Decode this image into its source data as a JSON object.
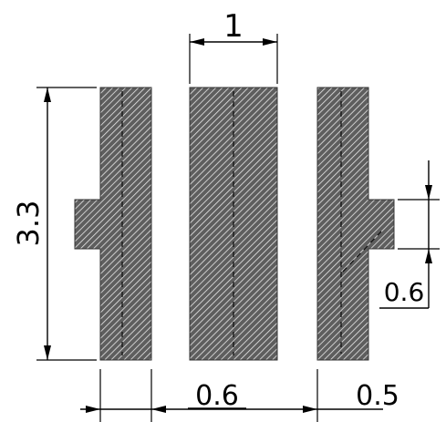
{
  "drawing": {
    "hatch_color": "#666666",
    "line_color": "#000000",
    "dimensions": {
      "top_width": "1",
      "left_height": "3.3",
      "right_notch": "0.6",
      "bottom_gap": "0.6",
      "bottom_width": "0.5"
    }
  }
}
